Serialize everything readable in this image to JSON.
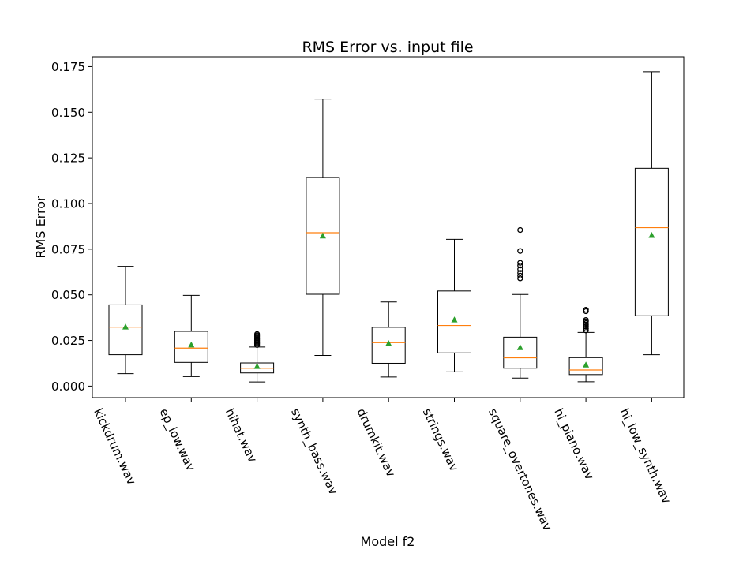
{
  "chart_data": {
    "type": "box",
    "title": "RMS Error vs. input file",
    "xlabel": "Model f2",
    "ylabel": "RMS Error",
    "ylim": [
      -0.007,
      0.1805
    ],
    "yticks": [
      0.0,
      0.025,
      0.05,
      0.075,
      0.1,
      0.125,
      0.15,
      0.175
    ],
    "ytick_labels": [
      "0.000",
      "0.025",
      "0.050",
      "0.075",
      "0.100",
      "0.125",
      "0.150",
      "0.175"
    ],
    "grid": false,
    "colors": {
      "box": "#000000",
      "median": "#ff7f0e",
      "mean": "#2ca02c",
      "flier": "#000000"
    },
    "categories": [
      "kickdrum.wav",
      "ep_low.wav",
      "hihat.wav",
      "synth_bass.wav",
      "drumkit.wav",
      "strings.wav",
      "square_overtones.wav",
      "hi_piano.wav",
      "hi_low_synth.wav"
    ],
    "boxes": [
      {
        "whislo": 0.0068,
        "q1": 0.0172,
        "median": 0.0323,
        "q3": 0.0445,
        "whishi": 0.0656,
        "mean": 0.0323,
        "fliers": []
      },
      {
        "whislo": 0.0052,
        "q1": 0.013,
        "median": 0.0208,
        "q3": 0.03,
        "whishi": 0.0497,
        "mean": 0.0225,
        "fliers": []
      },
      {
        "whislo": 0.0023,
        "q1": 0.0072,
        "median": 0.0098,
        "q3": 0.0127,
        "whishi": 0.0214,
        "mean": 0.0107,
        "fliers": [
          0.0225,
          0.0232,
          0.0238,
          0.0244,
          0.025,
          0.0256,
          0.0263,
          0.027,
          0.0278,
          0.0285
        ]
      },
      {
        "whislo": 0.0168,
        "q1": 0.0503,
        "median": 0.084,
        "q3": 0.1143,
        "whishi": 0.1572,
        "mean": 0.0822,
        "fliers": []
      },
      {
        "whislo": 0.005,
        "q1": 0.0125,
        "median": 0.0238,
        "q3": 0.0322,
        "whishi": 0.0461,
        "mean": 0.0233,
        "fliers": []
      },
      {
        "whislo": 0.0078,
        "q1": 0.0182,
        "median": 0.0332,
        "q3": 0.0521,
        "whishi": 0.0804,
        "mean": 0.0362,
        "fliers": []
      },
      {
        "whislo": 0.0044,
        "q1": 0.0098,
        "median": 0.0155,
        "q3": 0.0268,
        "whishi": 0.0502,
        "mean": 0.021,
        "fliers": [
          0.059,
          0.0605,
          0.062,
          0.064,
          0.066,
          0.0675,
          0.074,
          0.0855
        ]
      },
      {
        "whislo": 0.0024,
        "q1": 0.0063,
        "median": 0.0088,
        "q3": 0.0156,
        "whishi": 0.0294,
        "mean": 0.0115,
        "fliers": [
          0.0305,
          0.0315,
          0.0325,
          0.0335,
          0.0345,
          0.0355,
          0.0362,
          0.041,
          0.0418
        ]
      },
      {
        "whislo": 0.0172,
        "q1": 0.0385,
        "median": 0.0868,
        "q3": 0.1193,
        "whishi": 0.1722,
        "mean": 0.0825,
        "fliers": []
      }
    ]
  }
}
